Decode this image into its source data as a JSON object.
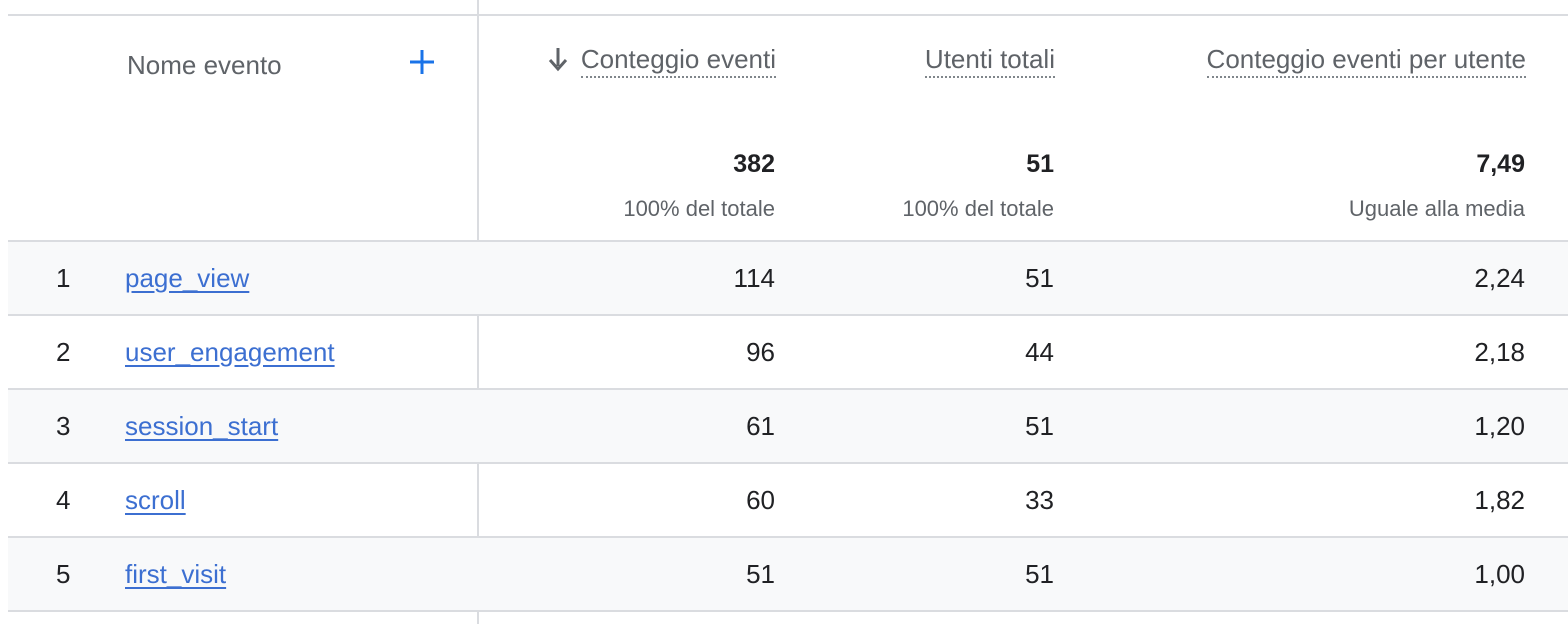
{
  "header": {
    "col_name": "Nome evento",
    "col_event_count": "Conteggio eventi",
    "col_total_users": "Utenti totali",
    "col_events_per_user": "Conteggio eventi per utente"
  },
  "icons": {
    "add": "plus-icon",
    "sort": "arrow-down-icon"
  },
  "colors": {
    "link": "#3c6fd1",
    "accent": "#1a73e8",
    "shaded_row": "#f8f9fa"
  },
  "totals": {
    "event_count": "382",
    "event_count_sub": "100% del totale",
    "total_users": "51",
    "total_users_sub": "100% del totale",
    "events_per_user": "7,49",
    "events_per_user_sub": "Uguale alla media"
  },
  "rows": [
    {
      "index": "1",
      "name": "page_view",
      "event_count": "114",
      "total_users": "51",
      "events_per_user": "2,24"
    },
    {
      "index": "2",
      "name": "user_engagement",
      "event_count": "96",
      "total_users": "44",
      "events_per_user": "2,18"
    },
    {
      "index": "3",
      "name": "session_start",
      "event_count": "61",
      "total_users": "51",
      "events_per_user": "1,20"
    },
    {
      "index": "4",
      "name": "scroll",
      "event_count": "60",
      "total_users": "33",
      "events_per_user": "1,82"
    },
    {
      "index": "5",
      "name": "first_visit",
      "event_count": "51",
      "total_users": "51",
      "events_per_user": "1,00"
    }
  ]
}
